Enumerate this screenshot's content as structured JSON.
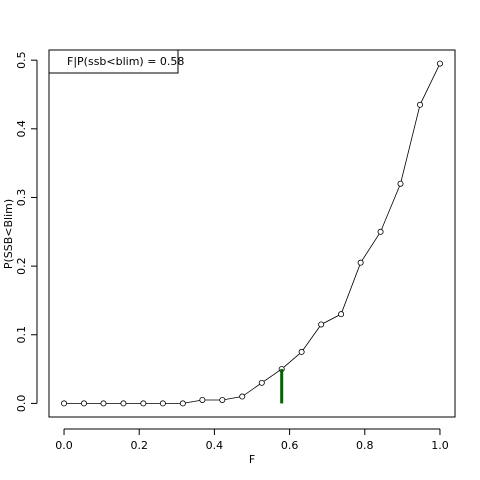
{
  "chart_data": {
    "type": "line",
    "x_label": "F",
    "y_label": "P(SSB<Blim)",
    "legend": "F|P(ssb<blim) =  0.58",
    "x": [
      0,
      0.053,
      0.105,
      0.158,
      0.211,
      0.263,
      0.316,
      0.368,
      0.421,
      0.474,
      0.526,
      0.579,
      0.632,
      0.684,
      0.737,
      0.789,
      0.842,
      0.895,
      0.947,
      1
    ],
    "series": [
      {
        "color": "#000000",
        "values": [
          0,
          0,
          0,
          0,
          0,
          0,
          0,
          0.005,
          0.005,
          0.01,
          0.03,
          0.05,
          0.075,
          0.115,
          0.13,
          0.205,
          0.25,
          0.32,
          0.435,
          0.495
        ]
      }
    ],
    "vline": {
      "x": 0.579,
      "ymax": 0.05,
      "color": "#006400"
    },
    "xlim": [
      -0.04,
      1.04
    ],
    "ylim": [
      -0.0198,
      0.5148
    ],
    "xticks": [
      {
        "value": 0,
        "label": "0.0"
      },
      0.2,
      0.4,
      0.6,
      0.8,
      {
        "value": 1,
        "label": "1.0"
      }
    ],
    "yticks": [
      {
        "value": 0,
        "label": "0.0"
      },
      0.1,
      0.2,
      0.3,
      0.4,
      0.5
    ]
  }
}
